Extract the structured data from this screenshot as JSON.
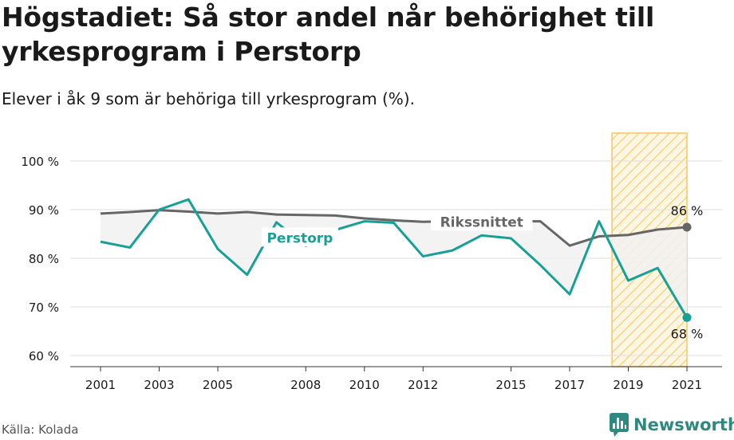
{
  "header": {
    "title": "Högstadiet: Så stor andel når behörighet till yrkesprogram i Perstorp",
    "subtitle": "Elever i åk 9 som är behöriga till yrkesprogram (%)."
  },
  "footer": {
    "source": "Källa: Kolada",
    "brand": "Newsworthy"
  },
  "colors": {
    "perstorp": "#17a196",
    "riket": "#666666",
    "highlight": "#f7c65a",
    "grid": "#dddddd"
  },
  "chart_data": {
    "type": "line",
    "title": "Högstadiet: Så stor andel når behörighet till yrkesprogram i Perstorp",
    "subtitle": "Elever i åk 9 som är behöriga till yrkesprogram (%).",
    "xlabel": "",
    "ylabel": "",
    "x": [
      2001,
      2002,
      2003,
      2004,
      2005,
      2006,
      2007,
      2008,
      2009,
      2010,
      2011,
      2012,
      2013,
      2014,
      2015,
      2016,
      2017,
      2018,
      2019,
      2020,
      2021
    ],
    "x_ticks": [
      2001,
      2003,
      2005,
      2008,
      2010,
      2012,
      2015,
      2017,
      2019,
      2021
    ],
    "y_ticks": [
      60,
      70,
      80,
      90,
      100
    ],
    "y_tick_labels": [
      "60 %",
      "70 %",
      "80 %",
      "90 %",
      "100 %"
    ],
    "xlim": [
      2001,
      2021
    ],
    "ylim": [
      60,
      100
    ],
    "grid": true,
    "highlight_range": [
      2018.5,
      2021
    ],
    "series": [
      {
        "name": "Rikssnittet",
        "values": [
          89.2,
          89.5,
          89.9,
          89.6,
          89.2,
          89.5,
          89.0,
          88.9,
          88.8,
          88.2,
          87.8,
          87.5,
          87.6,
          87.6,
          87.6,
          87.6,
          82.6,
          84.5,
          84.8,
          85.9,
          86.4
        ],
        "end_label": "86 %"
      },
      {
        "name": "Perstorp",
        "values": [
          83.4,
          82.2,
          90.0,
          92.1,
          81.9,
          76.6,
          87.4,
          82.5,
          85.8,
          87.6,
          87.3,
          80.4,
          81.6,
          84.7,
          84.1,
          78.6,
          72.6,
          87.6,
          75.4,
          78.0,
          67.8
        ],
        "end_label": "68 %"
      }
    ]
  }
}
